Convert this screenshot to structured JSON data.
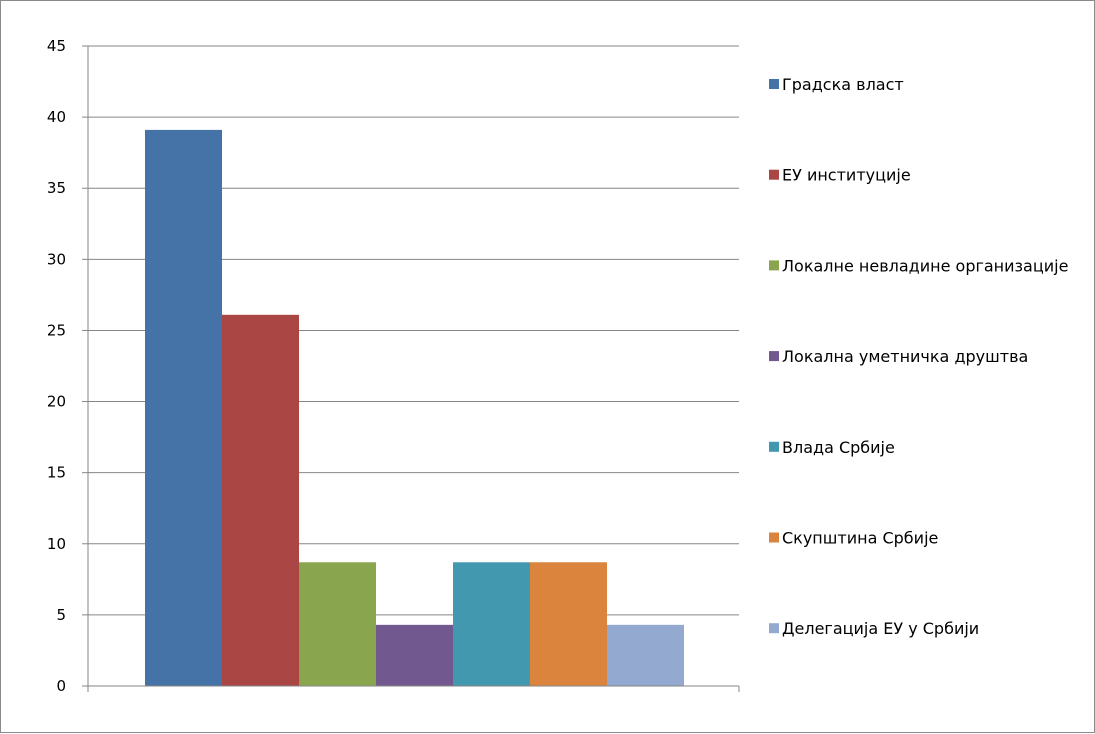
{
  "chart_data": {
    "type": "bar",
    "title": "",
    "xlabel": "",
    "ylabel": "",
    "ylim": [
      0,
      45
    ],
    "yticks": [
      0,
      5,
      10,
      15,
      20,
      25,
      30,
      35,
      40,
      45
    ],
    "grid": true,
    "legend_position": "right",
    "categories": [
      ""
    ],
    "series": [
      {
        "name": "Градска власт",
        "values": [
          39.1
        ],
        "color": "#4572A7"
      },
      {
        "name": "ЕУ институције",
        "values": [
          26.1
        ],
        "color": "#AA4643"
      },
      {
        "name": "Локалне невладине организације",
        "values": [
          8.7
        ],
        "color": "#89A54E"
      },
      {
        "name": "Локална уметничка друштва",
        "values": [
          4.3
        ],
        "color": "#71588F"
      },
      {
        "name": "Влада Србије",
        "values": [
          8.7
        ],
        "color": "#4198AF"
      },
      {
        "name": "Скупштина Србије",
        "values": [
          8.7
        ],
        "color": "#DB843D"
      },
      {
        "name": "Делегација ЕУ у Србији",
        "values": [
          4.3
        ],
        "color": "#93A9CF"
      }
    ]
  }
}
